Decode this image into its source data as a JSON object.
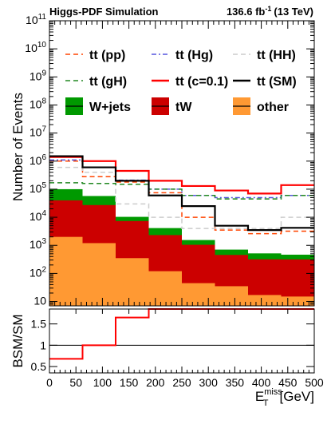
{
  "header": {
    "left": "Higgs-PDF Simulation",
    "lumi": "136.6 fb",
    "lumi_exp": "-1",
    "energy": "(13 TeV)"
  },
  "chart_data": [
    {
      "type": "bar",
      "panel": "main",
      "stacked": true,
      "log_y": true,
      "xlabel_main": "E",
      "xlabel_sup": "miss",
      "xlabel_sub": "T",
      "xlabel_unit": "[GeV]",
      "ylabel": "Number of Events",
      "xlim": [
        0,
        500
      ],
      "ylim": [
        7,
        100000000000
      ],
      "bin_edges": [
        0,
        62.5,
        125,
        187.5,
        250,
        312.5,
        375,
        437.5,
        500
      ],
      "x_ticks": [
        0,
        50,
        100,
        150,
        200,
        250,
        300,
        350,
        400,
        450,
        500
      ],
      "y_ticks": [
        {
          "value": 10,
          "base": "10",
          "exp": ""
        },
        {
          "value": 100,
          "base": "10",
          "exp": "2"
        },
        {
          "value": 1000,
          "base": "10",
          "exp": "3"
        },
        {
          "value": 10000,
          "base": "10",
          "exp": "4"
        },
        {
          "value": 100000,
          "base": "10",
          "exp": "5"
        },
        {
          "value": 1000000,
          "base": "10",
          "exp": "6"
        },
        {
          "value": 10000000,
          "base": "10",
          "exp": "7"
        },
        {
          "value": 100000000,
          "base": "10",
          "exp": "8"
        },
        {
          "value": 1000000000,
          "base": "10",
          "exp": "9"
        },
        {
          "value": 10000000000,
          "base": "10",
          "exp": "10"
        },
        {
          "value": 100000000000,
          "base": "10",
          "exp": "11"
        }
      ],
      "stack": [
        {
          "name": "other",
          "color": "#ff9933",
          "values": [
            2000,
            1200,
            350,
            120,
            45,
            35,
            17,
            15
          ]
        },
        {
          "name": "tW",
          "color": "#cc0000",
          "values": [
            38000,
            26000,
            7000,
            2200,
            1000,
            420,
            300,
            300
          ]
        },
        {
          "name": "W+jets",
          "color": "#009900",
          "values": [
            60000,
            30000,
            3000,
            1800,
            500,
            250,
            200,
            150
          ]
        }
      ],
      "lines": [
        {
          "name": "tt (pp)",
          "color": "#ff4400",
          "dash": "dashed",
          "values": [
            1000000,
            280000,
            180000,
            75000,
            10000,
            3500,
            2600,
            3200
          ]
        },
        {
          "name": "tt (Hg)",
          "color": "#5555dd",
          "dash": "dashdot",
          "values": [
            1100000,
            600000,
            210000,
            100000,
            60000,
            50000,
            50000,
            60000
          ]
        },
        {
          "name": "tt (HH)",
          "color": "#cccccc",
          "dash": "dashed",
          "values": [
            600000,
            400000,
            30000,
            10000,
            4000,
            4000,
            4000,
            10000
          ]
        },
        {
          "name": "tt (gH)",
          "color": "#228822",
          "dash": "dashed",
          "values": [
            170000,
            160000,
            150000,
            100000,
            60000,
            45000,
            45000,
            60000
          ]
        },
        {
          "name": "tt (c=0.1)",
          "color": "#ff0000",
          "dash": "solid",
          "values": [
            1400000,
            1000000,
            450000,
            200000,
            130000,
            90000,
            70000,
            140000
          ]
        },
        {
          "name": "tt (SM)",
          "color": "#000000",
          "dash": "solid",
          "values": [
            1500000,
            600000,
            200000,
            60000,
            25000,
            5000,
            3500,
            4200
          ]
        }
      ]
    },
    {
      "type": "line",
      "panel": "ratio",
      "ylabel": "BSM/SM",
      "xlim": [
        0,
        500
      ],
      "ylim": [
        0.35,
        1.85
      ],
      "y_ticks": [
        0.5,
        1,
        1.5
      ],
      "y_tick_labels": [
        "0.5",
        "1",
        "1.5"
      ],
      "reference_line": 1,
      "series": [
        {
          "color": "#ff0000",
          "bin_edges": [
            0,
            62.5,
            125,
            187.5,
            500
          ],
          "values": [
            0.68,
            1.0,
            1.65,
            1.9
          ]
        }
      ]
    }
  ]
}
